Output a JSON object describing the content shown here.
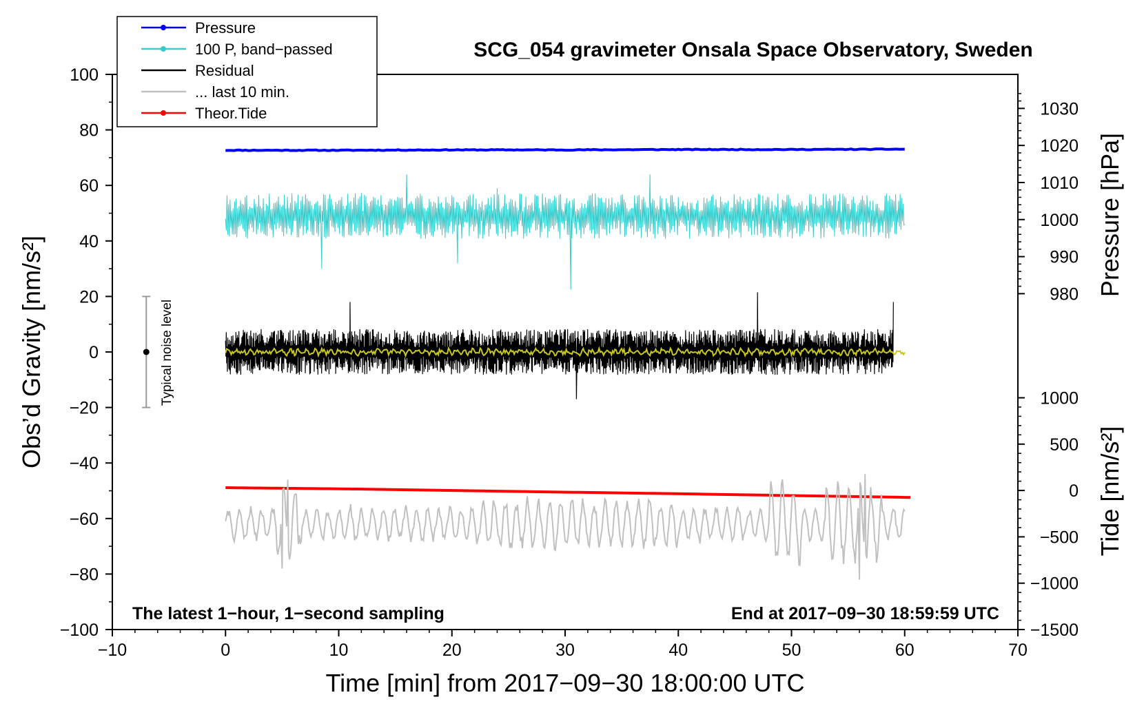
{
  "chart_data": {
    "type": "line",
    "title": "SCG_054 gravimeter Onsala Space Observatory, Sweden",
    "note_left": "The latest 1−hour, 1−second sampling",
    "note_right": "End at 2017−09−30 18:59:59 UTC",
    "xlabel": "Time [min] from 2017−09−30 18:00:00 UTC",
    "ylabel_left": "Obs’d Gravity [nm/s²]",
    "ylabel_right_pressure": "Pressure [hPa]",
    "ylabel_right_tide": "Tide [nm/s²]",
    "xlim": [
      -10,
      70
    ],
    "ylim": [
      -100,
      100
    ],
    "x_ticks": [
      "−10",
      "0",
      "10",
      "20",
      "30",
      "40",
      "50",
      "60",
      "70"
    ],
    "x_tick_values": [
      -10,
      0,
      10,
      20,
      30,
      40,
      50,
      60,
      70
    ],
    "y_ticks": [
      "100",
      "80",
      "60",
      "40",
      "20",
      "0",
      "−20",
      "−40",
      "−60",
      "−80",
      "−100"
    ],
    "y_tick_values": [
      100,
      80,
      60,
      40,
      20,
      0,
      -20,
      -40,
      -60,
      -80,
      -100
    ],
    "pressure_ticks": [
      "1030",
      "1020",
      "1010",
      "1000",
      "990",
      "980"
    ],
    "pressure_tick_values": [
      1030,
      1020,
      1010,
      1000,
      990,
      980
    ],
    "pressure_axis_to_left": {
      "p_at": [
        980,
        1020
      ],
      "y_at": [
        21,
        74.4
      ]
    },
    "tide_ticks": [
      "1000",
      "500",
      "0",
      "−500",
      "−1000",
      "−1500"
    ],
    "tide_tick_values": [
      1000,
      500,
      0,
      -500,
      -1000,
      -1500
    ],
    "tide_axis_to_left": {
      "t_at": [
        1000,
        -1500
      ],
      "y_at": [
        -16.5,
        -100
      ]
    },
    "grid": false,
    "legend_position": "top-left",
    "legend": [
      {
        "label": "Pressure",
        "color": "#0000ff",
        "marker": true
      },
      {
        "label": "100 P, band−passed",
        "color": "#33cccc",
        "marker": true
      },
      {
        "label": "Residual",
        "color": "#000000",
        "marker": false
      },
      {
        "label": "... last 10 min.",
        "color": "#c0c0c0",
        "marker": false
      },
      {
        "label": "Theor.Tide",
        "color": "#ff0000",
        "marker": true
      }
    ],
    "noise_bar": {
      "label": "Typical noise level",
      "x": -7,
      "y_center": 0,
      "y_range": [
        -20,
        20
      ]
    },
    "series": [
      {
        "name": "Pressure",
        "color": "#0000ff",
        "kind": "pressure_hpa",
        "x": [
          0,
          10,
          20,
          30,
          40,
          50,
          60
        ],
        "values": [
          1018.7,
          1018.7,
          1018.8,
          1018.8,
          1018.9,
          1018.9,
          1019.0
        ]
      },
      {
        "name": "Theor.Tide",
        "color": "#ff0000",
        "kind": "tide_nms2",
        "x": [
          0,
          10,
          20,
          30,
          40,
          50,
          60.5
        ],
        "values": [
          30,
          18,
          0,
          -18,
          -35,
          -55,
          -75
        ]
      },
      {
        "name": "100 P, band−passed",
        "color": "#33cccc",
        "kind": "gravity_nms2",
        "x": [
          0,
          8.5,
          16,
          20.5,
          24,
          30.5,
          37.5,
          60
        ],
        "values": [
          48,
          30,
          64,
          32,
          59,
          22.5,
          64,
          46
        ],
        "center": 49,
        "amplitude": 5.5
      },
      {
        "name": "Residual",
        "color": "#000000",
        "kind": "gravity_nms2",
        "x": [
          0,
          11,
          31,
          47,
          59
        ],
        "values": [
          4,
          18,
          -17,
          21.5,
          18
        ],
        "center": 0,
        "amplitude": 5.5
      },
      {
        "name": "Smoothed residual",
        "color": "#c8c81e",
        "kind": "gravity_nms2",
        "x": [
          0,
          60
        ],
        "values": [
          0,
          0
        ],
        "center": 0,
        "amplitude": 1
      },
      {
        "name": "... last 10 min.",
        "color": "#c0c0c0",
        "kind": "gravity_nms2",
        "x": [
          0,
          5.5,
          5,
          56.5,
          56,
          60
        ],
        "values": [
          -64,
          -46,
          -78,
          -44,
          -82,
          -54
        ],
        "center": -62,
        "amplitude": 6
      }
    ]
  }
}
